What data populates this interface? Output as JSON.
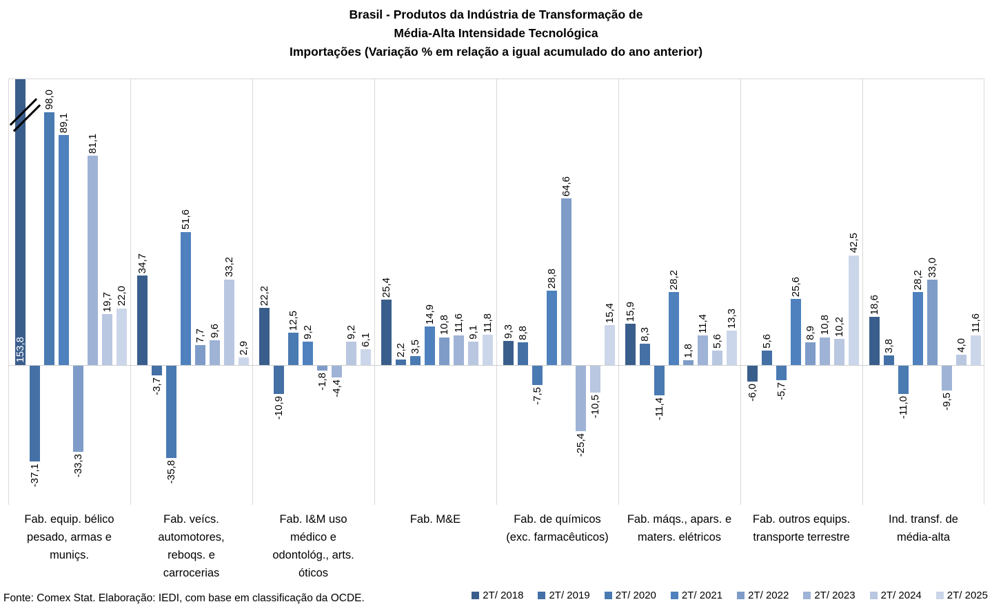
{
  "chart_data": {
    "type": "bar",
    "title": "Brasil - Produtos da Indústria de Transformação de\nMédia-Alta Intensidade Tecnológica\nImportações (Variação % em relação a igual acumulado do ano anterior)",
    "source_note": "Fonte: Comex Stat. Elaboração: IEDI, com base em classificação da OCDE.",
    "ylabel": "Variação %",
    "ylim": [
      -54,
      110
    ],
    "baseline": 0,
    "legend_position": "bottom-right",
    "grid": "vertical-group-separators",
    "value_label_format": "one-decimal-comma-rotated-90",
    "axis_break": {
      "category": "Fab. equip. bélico pesado, armas e muniçs.",
      "series": "2T/ 2018",
      "value": 153.8
    },
    "categories": [
      "Fab. equip. bélico\npesado, armas e\nmuniçs.",
      "Fab. veícs.\nautomotores,\nreboqs. e\ncarrocerias",
      "Fab. I&M uso\nmédico e\nodontológ., arts.\nóticos",
      "Fab. M&E",
      "Fab. de químicos\n(exc. farmacêuticos)",
      "Fab. máqs., apars. e\nmaters. elétricos",
      "Fab. outros equips.\ntransporte terrestre",
      "Ind. transf. de\nmédia-alta"
    ],
    "series": [
      {
        "name": "2T/ 2018",
        "color": "#3A5E8C",
        "values": [
          153.8,
          34.7,
          22.2,
          25.4,
          9.3,
          15.9,
          -6.0,
          18.6
        ]
      },
      {
        "name": "2T/ 2019",
        "color": "#4470A6",
        "values": [
          -37.1,
          -3.7,
          -10.9,
          2.2,
          8.8,
          8.3,
          5.6,
          3.8
        ]
      },
      {
        "name": "2T/ 2020",
        "color": "#4A7AB2",
        "values": [
          98.0,
          -35.8,
          12.5,
          3.5,
          -7.5,
          -11.4,
          -5.7,
          -11.0
        ]
      },
      {
        "name": "2T/ 2021",
        "color": "#4E81BD",
        "values": [
          89.1,
          51.6,
          9.2,
          14.9,
          28.8,
          28.2,
          25.6,
          28.2
        ]
      },
      {
        "name": "2T/ 2022",
        "color": "#7F9CC9",
        "values": [
          -33.3,
          7.7,
          -1.8,
          10.8,
          64.6,
          1.8,
          8.9,
          33.0
        ]
      },
      {
        "name": "2T/ 2023",
        "color": "#9FB3D6",
        "values": [
          81.1,
          9.6,
          -4.4,
          11.6,
          -25.4,
          11.4,
          10.8,
          -9.5
        ]
      },
      {
        "name": "2T/ 2024",
        "color": "#B9C7E1",
        "values": [
          19.7,
          33.2,
          9.2,
          9.1,
          -10.5,
          5.6,
          10.2,
          4.0
        ]
      },
      {
        "name": "2T/ 2025",
        "color": "#CCD6EA",
        "values": [
          22.0,
          2.9,
          6.1,
          11.8,
          15.4,
          13.3,
          42.5,
          11.6
        ]
      }
    ]
  }
}
